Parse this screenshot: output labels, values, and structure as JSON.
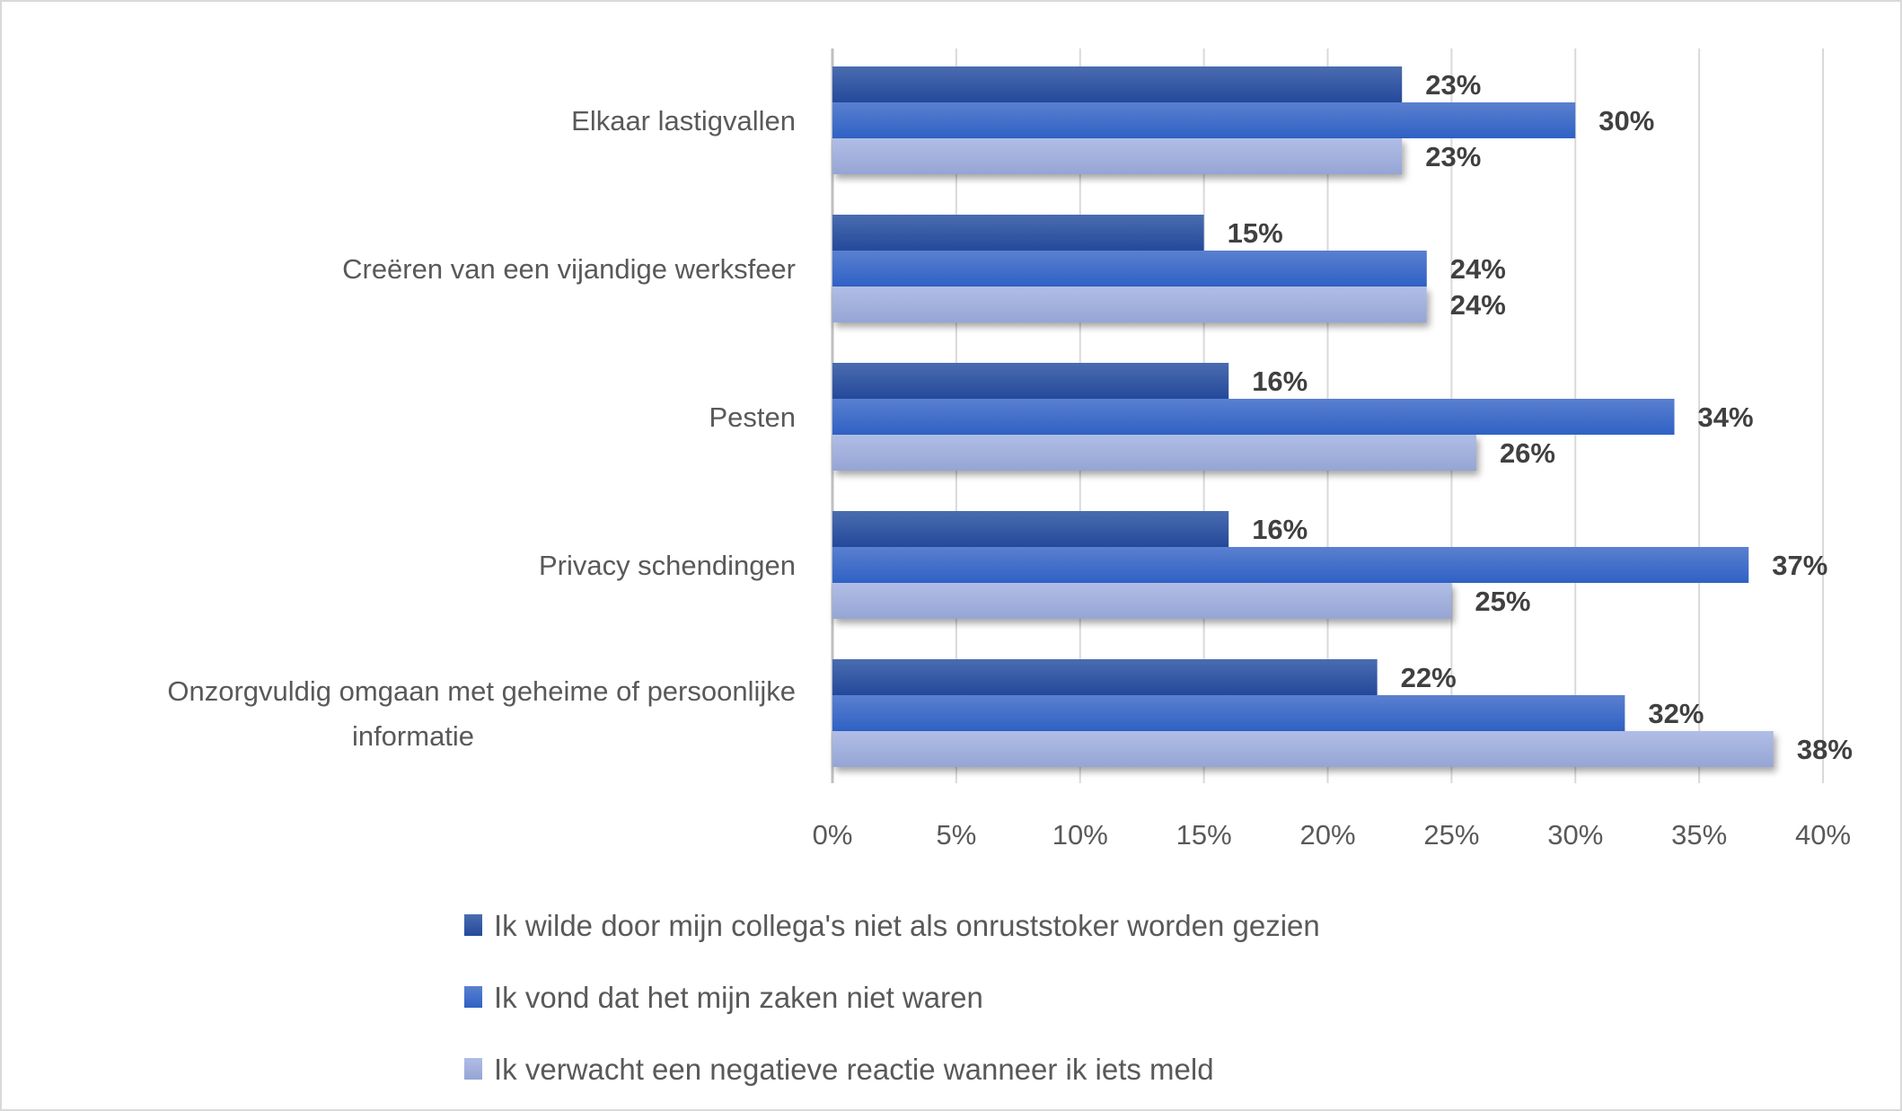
{
  "chart_data": {
    "type": "bar",
    "orientation": "horizontal",
    "title": "",
    "xlabel": "",
    "ylabel": "",
    "categories": [
      "Elkaar lastigvallen",
      "Creëren van een vijandige werksfeer",
      "Pesten",
      "Privacy schendingen",
      "Onzorgvuldig omgaan met geheime of persoonlijke informatie"
    ],
    "category_lines": [
      [
        "Elkaar lastigvallen"
      ],
      [
        "Creëren van een vijandige werksfeer"
      ],
      [
        "Pesten"
      ],
      [
        "Privacy schendingen"
      ],
      [
        "Onzorgvuldig omgaan met geheime of persoonlijke",
        "informatie"
      ]
    ],
    "series": [
      {
        "name": "Ik wilde door mijn collega's niet als onruststoker worden gezien",
        "color": "#2f55a4",
        "values": [
          23,
          15,
          16,
          16,
          22
        ]
      },
      {
        "name": "Ik vond dat het mijn zaken niet waren",
        "color": "#3f6fcc",
        "values": [
          30,
          24,
          34,
          37,
          32
        ]
      },
      {
        "name": "Ik verwacht een negatieve reactie wanneer ik iets meld",
        "color": "#a6b4df",
        "values": [
          23,
          24,
          26,
          25,
          38
        ]
      }
    ],
    "xlim": [
      0,
      40
    ],
    "xticks": [
      "0%",
      "5%",
      "10%",
      "15%",
      "20%",
      "25%",
      "30%",
      "35%",
      "40%"
    ],
    "value_suffix": "%",
    "grid": true,
    "legend": "bottom"
  }
}
